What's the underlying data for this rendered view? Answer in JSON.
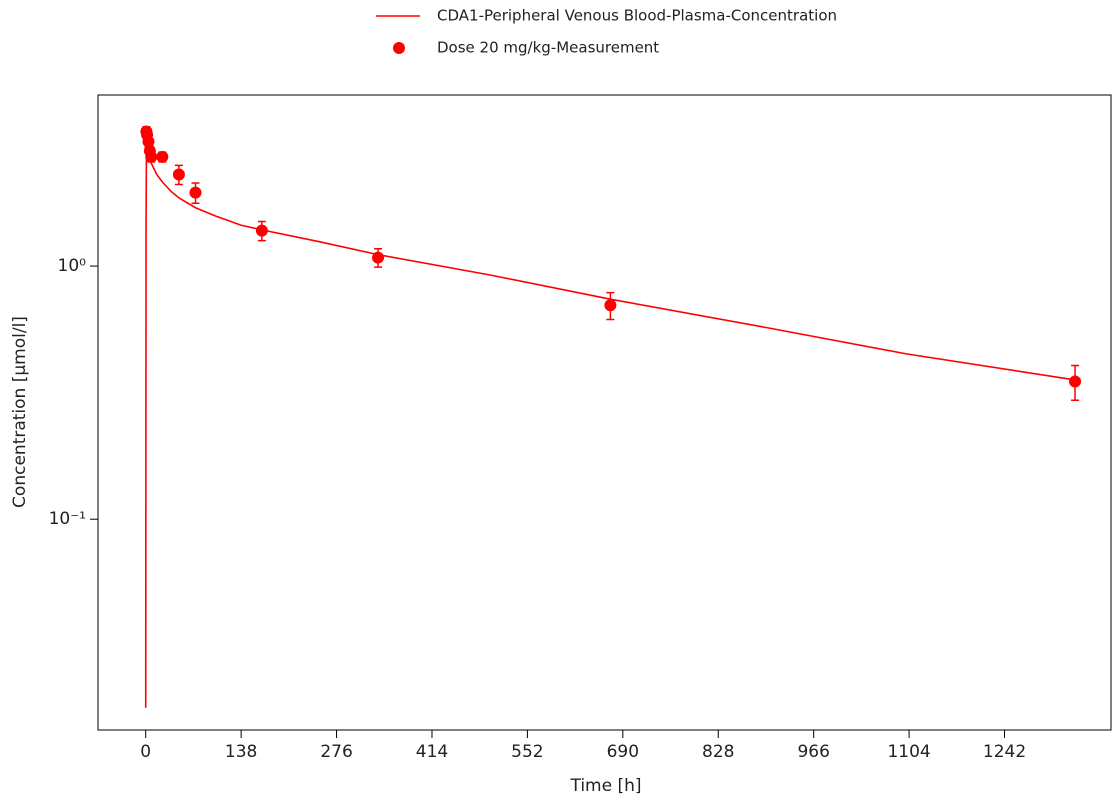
{
  "chart_data": {
    "type": "line",
    "xlabel": "Time [h]",
    "ylabel": "Concentration [µmol/l]",
    "xlim": [
      -69,
      1396
    ],
    "xticks": [
      0,
      138,
      276,
      414,
      552,
      690,
      828,
      966,
      1104,
      1242
    ],
    "ylim": [
      0.0147,
      4.74
    ],
    "log_y": true,
    "yticks": [
      {
        "value": 0.1,
        "label": "10⁻¹"
      },
      {
        "value": 1,
        "label": "10⁰"
      }
    ],
    "series": [
      {
        "name": "CDA1-Peripheral Venous Blood-Plasma-Concentration",
        "type": "line",
        "color": "#ff0000",
        "x": [
          0,
          0.5,
          1,
          2,
          4,
          8,
          16,
          24,
          36,
          48,
          72,
          100,
          138,
          168,
          250,
          336,
          500,
          672,
          900,
          1100,
          1344
        ],
        "values": [
          0.018,
          1.5,
          2.6,
          2.9,
          2.75,
          2.55,
          2.3,
          2.15,
          1.98,
          1.86,
          1.7,
          1.58,
          1.45,
          1.39,
          1.25,
          1.11,
          0.92,
          0.74,
          0.57,
          0.45,
          0.355
        ]
      },
      {
        "name": "Dose 20 mg/kg-Measurement",
        "type": "scatter",
        "color": "#ff0000",
        "x": [
          1,
          2,
          4,
          6,
          8,
          24,
          48,
          72,
          168,
          336,
          672,
          1344
        ],
        "values": [
          3.4,
          3.3,
          3.1,
          2.85,
          2.7,
          2.7,
          2.3,
          1.95,
          1.38,
          1.08,
          0.7,
          0.35
        ],
        "errors": [
          0.15,
          0.15,
          0.15,
          0.12,
          0.12,
          0.12,
          0.2,
          0.18,
          0.12,
          0.09,
          0.085,
          0.055
        ]
      }
    ]
  }
}
